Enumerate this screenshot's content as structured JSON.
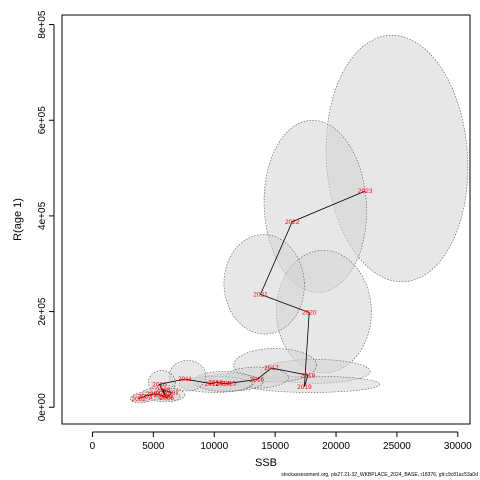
{
  "chart_data": {
    "type": "scatter",
    "xlabel": "SSB",
    "ylabel": "R(age 1)",
    "xlim": [
      -2500,
      31000
    ],
    "ylim": [
      -35000,
      820000
    ],
    "x_ticks": [
      0,
      5000,
      10000,
      15000,
      20000,
      25000,
      30000
    ],
    "x_tick_labels": [
      "0",
      "5000",
      "10000",
      "15000",
      "20000",
      "25000",
      "30000"
    ],
    "y_ticks": [
      0,
      200000,
      400000,
      600000,
      800000
    ],
    "y_tick_labels": [
      "0e+00",
      "2e+05",
      "4e+05",
      "6e+05",
      "8e+05"
    ],
    "grid": false,
    "points": [
      {
        "year": "2002",
        "ssb": 3800,
        "rec": 18000
      },
      {
        "year": "2003",
        "ssb": 4300,
        "rec": 23000
      },
      {
        "year": "2004",
        "ssb": 5000,
        "rec": 28000
      },
      {
        "year": "2005",
        "ssb": 5600,
        "rec": 26000
      },
      {
        "year": "2006",
        "ssb": 6100,
        "rec": 20000
      },
      {
        "year": "2007",
        "ssb": 6500,
        "rec": 30000
      },
      {
        "year": "2008",
        "ssb": 5800,
        "rec": 37000
      },
      {
        "year": "2009",
        "ssb": 6000,
        "rec": 22000
      },
      {
        "year": "2010",
        "ssb": 5500,
        "rec": 48000
      },
      {
        "year": "2011",
        "ssb": 7600,
        "rec": 59000
      },
      {
        "year": "2012",
        "ssb": 9800,
        "rec": 49000
      },
      {
        "year": "2013",
        "ssb": 10100,
        "rec": 52000
      },
      {
        "year": "2014",
        "ssb": 10700,
        "rec": 50000
      },
      {
        "year": "2015",
        "ssb": 11200,
        "rec": 50000
      },
      {
        "year": "2016",
        "ssb": 13500,
        "rec": 58000
      },
      {
        "year": "2017",
        "ssb": 14700,
        "rec": 82000
      },
      {
        "year": "2018",
        "ssb": 17700,
        "rec": 67000
      },
      {
        "year": "2019",
        "ssb": 17400,
        "rec": 43000
      },
      {
        "year": "2020",
        "ssb": 17800,
        "rec": 198000
      },
      {
        "year": "2021",
        "ssb": 13800,
        "rec": 236000
      },
      {
        "year": "2022",
        "ssb": 16400,
        "rec": 388000
      },
      {
        "year": "2023",
        "ssb": 22400,
        "rec": 452000
      }
    ],
    "ellipses": [
      {
        "cx": 25000,
        "cy": 520000,
        "rx": 5800,
        "ry": 258000,
        "rot": -0.06
      },
      {
        "cx": 18300,
        "cy": 420000,
        "rx": 4200,
        "ry": 180000,
        "rot": -0.05
      },
      {
        "cx": 19000,
        "cy": 200000,
        "rx": 3900,
        "ry": 128000,
        "rot": -0.02
      },
      {
        "cx": 14100,
        "cy": 257000,
        "rx": 3300,
        "ry": 104000,
        "rot": -0.04
      },
      {
        "cx": 18300,
        "cy": 75000,
        "rx": 4500,
        "ry": 25000,
        "rot": 0
      },
      {
        "cx": 18000,
        "cy": 48000,
        "rx": 5600,
        "ry": 17000,
        "rot": 0
      },
      {
        "cx": 15000,
        "cy": 88000,
        "rx": 3400,
        "ry": 35000,
        "rot": 0
      },
      {
        "cx": 13500,
        "cy": 62000,
        "rx": 2600,
        "ry": 22000,
        "rot": 0
      },
      {
        "cx": 11300,
        "cy": 52000,
        "rx": 2700,
        "ry": 18000,
        "rot": 0
      },
      {
        "cx": 10100,
        "cy": 48000,
        "rx": 3000,
        "ry": 17000,
        "rot": 0
      },
      {
        "cx": 10800,
        "cy": 54000,
        "rx": 2500,
        "ry": 21000,
        "rot": 0
      },
      {
        "cx": 7800,
        "cy": 66000,
        "rx": 1500,
        "ry": 32000,
        "rot": 0
      },
      {
        "cx": 5700,
        "cy": 52000,
        "rx": 1100,
        "ry": 25000,
        "rot": 0
      },
      {
        "cx": 5800,
        "cy": 33000,
        "rx": 1100,
        "ry": 14000,
        "rot": 0
      },
      {
        "cx": 6400,
        "cy": 26000,
        "rx": 1200,
        "ry": 13000,
        "rot": 0
      },
      {
        "cx": 5000,
        "cy": 27000,
        "rx": 1000,
        "ry": 12000,
        "rot": 0
      },
      {
        "cx": 4300,
        "cy": 22000,
        "rx": 1000,
        "ry": 10000,
        "rot": 0
      },
      {
        "cx": 3900,
        "cy": 18000,
        "rx": 800,
        "ry": 9000,
        "rot": 0
      },
      {
        "cx": 6000,
        "cy": 22000,
        "rx": 1200,
        "ry": 11000,
        "rot": 0
      }
    ],
    "colors": {
      "label": "#ff0000",
      "line": "#000000",
      "ellipse_fill": "#d3d3d3",
      "ellipse_stroke": "#555555"
    }
  },
  "footer": "stockassessment.org, pls27.21-32_WKBPLACE_2024_BASE, r18376, git:c9c81ac53a0d"
}
